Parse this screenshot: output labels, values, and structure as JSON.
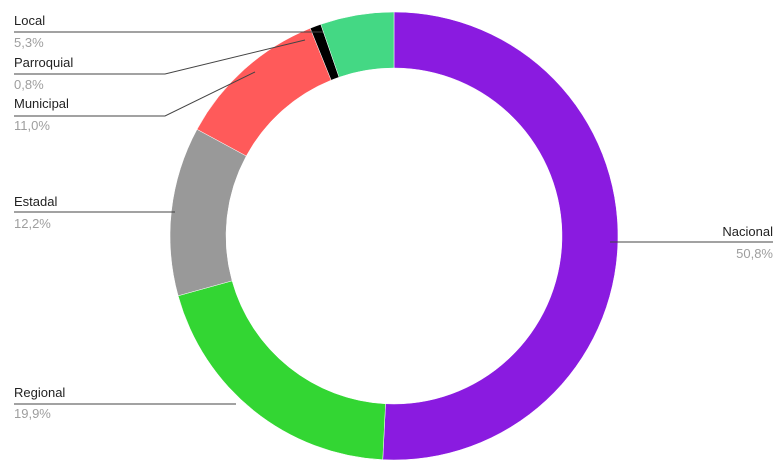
{
  "chart_data": {
    "type": "pie",
    "donut": true,
    "title": "",
    "slices": [
      {
        "label": "Nacional",
        "pct_label": "50,8%",
        "value": 50.8,
        "color": "#8a1be0"
      },
      {
        "label": "Regional",
        "pct_label": "19,9%",
        "value": 19.9,
        "color": "#33d633"
      },
      {
        "label": "Estadal",
        "pct_label": "12,2%",
        "value": 12.2,
        "color": "#999999"
      },
      {
        "label": "Municipal",
        "pct_label": "11,0%",
        "value": 11.0,
        "color": "#ff5a5a"
      },
      {
        "label": "Parroquial",
        "pct_label": "0,8%",
        "value": 0.8,
        "color": "#000000"
      },
      {
        "label": "Local",
        "pct_label": "5,3%",
        "value": 5.3,
        "color": "#44d884"
      }
    ],
    "legend": "none"
  }
}
